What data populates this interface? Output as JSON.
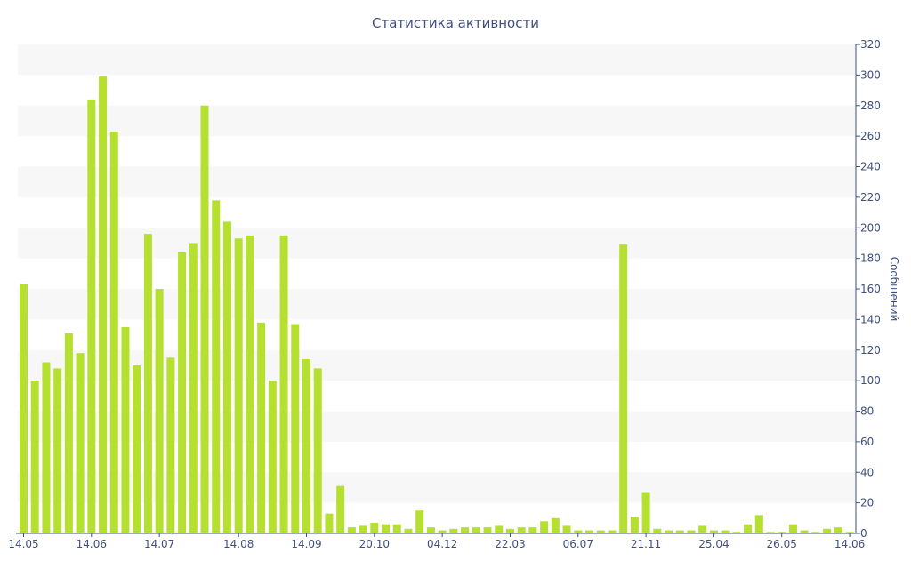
{
  "chart_data": {
    "type": "bar",
    "title": "Статистика активности",
    "ylabel": "Сообщений",
    "xlabel": "",
    "ylim": [
      0,
      320
    ],
    "y_ticks": [
      0,
      20,
      40,
      60,
      80,
      100,
      120,
      140,
      160,
      180,
      200,
      220,
      240,
      260,
      280,
      300,
      320
    ],
    "y_axis_side": "right",
    "grid": "horizontal bands",
    "legend": "none",
    "bar_color": "#b5e02f",
    "band_color": "#f7f7f7",
    "text_color": "#3f4f82",
    "x_tick_labels": [
      {
        "index": 0,
        "label": "14.05"
      },
      {
        "index": 6,
        "label": "14.06"
      },
      {
        "index": 12,
        "label": "14.07"
      },
      {
        "index": 19,
        "label": "14.08"
      },
      {
        "index": 25,
        "label": "14.09"
      },
      {
        "index": 31,
        "label": "20.10"
      },
      {
        "index": 37,
        "label": "04.12"
      },
      {
        "index": 43,
        "label": "22.03"
      },
      {
        "index": 49,
        "label": "06.07"
      },
      {
        "index": 55,
        "label": "21.11"
      },
      {
        "index": 61,
        "label": "25.04"
      },
      {
        "index": 67,
        "label": "26.05"
      },
      {
        "index": 73,
        "label": "14.06"
      }
    ],
    "values": [
      163,
      100,
      112,
      108,
      131,
      118,
      284,
      299,
      263,
      135,
      110,
      196,
      160,
      115,
      184,
      190,
      280,
      218,
      204,
      193,
      195,
      138,
      100,
      195,
      137,
      114,
      108,
      13,
      31,
      4,
      5,
      7,
      6,
      6,
      3,
      15,
      4,
      2,
      3,
      4,
      4,
      4,
      5,
      3,
      4,
      4,
      8,
      10,
      5,
      2,
      2,
      2,
      2,
      189,
      11,
      27,
      3,
      2,
      2,
      2,
      5,
      2,
      2,
      1,
      6,
      12,
      1,
      1,
      6,
      2,
      1,
      3,
      4,
      1
    ]
  }
}
